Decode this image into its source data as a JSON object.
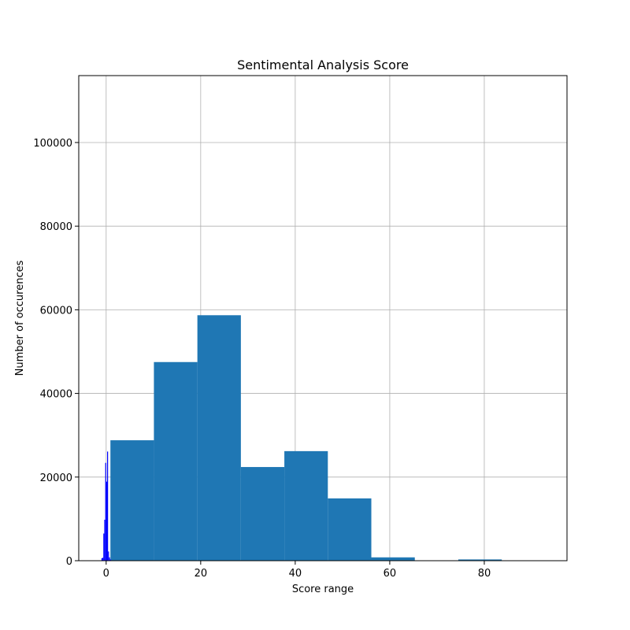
{
  "chart_data": {
    "type": "bar",
    "title": "Sentimental Analysis Score",
    "xlabel": "Score range",
    "ylabel": "Number of occurences",
    "xlim": [
      -5.8,
      97.5
    ],
    "ylim": [
      0,
      116000
    ],
    "xticks": [
      0,
      20,
      40,
      60,
      80
    ],
    "yticks": [
      0,
      20000,
      40000,
      60000,
      80000,
      100000
    ],
    "grid": true,
    "series": [
      {
        "color": "#1f77b4",
        "bin_width": 9.2,
        "bins": [
          {
            "x0": 0.9,
            "value": 28800
          },
          {
            "x0": 10.1,
            "value": 47500
          },
          {
            "x0": 19.3,
            "value": 58700
          },
          {
            "x0": 28.5,
            "value": 22400
          },
          {
            "x0": 37.7,
            "value": 26200
          },
          {
            "x0": 46.9,
            "value": 14900
          },
          {
            "x0": 56.1,
            "value": 800
          },
          {
            "x0": 65.3,
            "value": 0
          },
          {
            "x0": 74.5,
            "value": 300
          },
          {
            "x0": 83.7,
            "value": 0
          }
        ]
      },
      {
        "color": "#0000ff",
        "bin_width": 0.2,
        "bins": [
          {
            "x0": -1.0,
            "value": 600
          },
          {
            "x0": -0.8,
            "value": 700
          },
          {
            "x0": -0.6,
            "value": 6500
          },
          {
            "x0": -0.4,
            "value": 9800
          },
          {
            "x0": -0.2,
            "value": 23400
          },
          {
            "x0": 0.0,
            "value": 18900
          },
          {
            "x0": 0.2,
            "value": 26100
          },
          {
            "x0": 0.4,
            "value": 2200
          },
          {
            "x0": 0.6,
            "value": 800
          },
          {
            "x0": 0.8,
            "value": 300
          }
        ]
      }
    ]
  }
}
